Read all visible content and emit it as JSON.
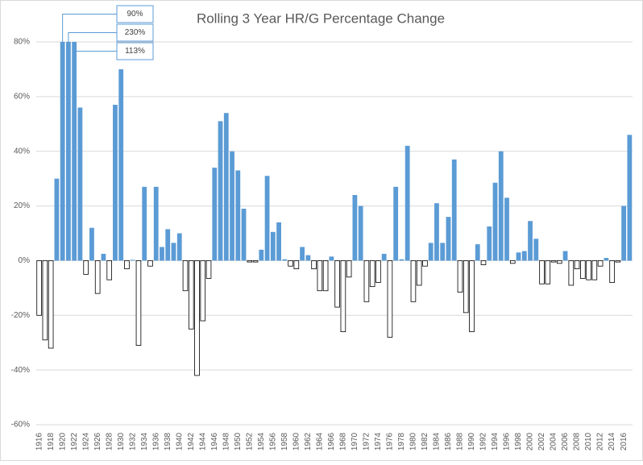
{
  "chart_data": {
    "type": "bar",
    "title": "Rolling 3 Year HR/G Percentage Change",
    "categories": [
      "1916",
      null,
      "1918",
      null,
      "1920",
      null,
      "1922",
      null,
      "1924",
      null,
      "1926",
      null,
      "1928",
      null,
      "1930",
      null,
      "1932",
      null,
      "1934",
      null,
      "1936",
      null,
      "1938",
      null,
      "1940",
      null,
      "1942",
      null,
      "1944",
      null,
      "1946",
      null,
      "1948",
      null,
      "1950",
      null,
      "1952",
      null,
      "1954",
      null,
      "1956",
      null,
      "1958",
      null,
      "1960",
      null,
      "1962",
      null,
      "1964",
      null,
      "1966",
      null,
      "1968",
      null,
      "1970",
      null,
      "1972",
      null,
      "1974",
      null,
      "1976",
      null,
      "1978",
      null,
      "1980",
      null,
      "1982",
      null,
      "1984",
      null,
      "1986",
      null,
      "1988",
      null,
      "1990",
      null,
      "1992",
      null,
      "1994",
      null,
      "1996",
      null,
      "1998",
      null,
      "2000",
      null,
      "2002",
      null,
      "2004",
      null,
      "2006",
      null,
      "2008",
      null,
      "2010",
      null,
      "2012",
      null,
      "2014",
      null,
      "2016",
      null
    ],
    "values": [
      -20,
      -29,
      -32,
      30,
      90,
      230,
      113,
      56,
      -5,
      12,
      -12,
      2.5,
      -7,
      57,
      70,
      -3,
      0.3,
      -31,
      27,
      -2,
      27,
      5,
      11.5,
      6.5,
      10,
      -11,
      -25,
      -42,
      -22,
      -6.5,
      34,
      51,
      54,
      40,
      33,
      19,
      -0.5,
      -0.5,
      4,
      31,
      10.5,
      14,
      0.5,
      -2,
      -3,
      5,
      2,
      -3,
      -11,
      -11,
      1.5,
      -17,
      -26,
      -6,
      24,
      20,
      -15,
      -9.5,
      -8,
      2.5,
      -28,
      27,
      0.5,
      42,
      -15,
      -9,
      -2,
      6.5,
      21,
      6.5,
      16,
      37,
      -11.5,
      -19,
      -26,
      6,
      -1.5,
      12.5,
      28.5,
      40,
      23,
      -1,
      3,
      3.5,
      14.5,
      8,
      -8.5,
      -8.5,
      -0.5,
      -1,
      3.5,
      -9,
      -3,
      -6.5,
      -7,
      -7,
      -2,
      1,
      -8,
      -0.5,
      20,
      46
    ],
    "value_labels": [
      null,
      null,
      null,
      null,
      "90%",
      "230%",
      "113%",
      null,
      null,
      null,
      null,
      null,
      null,
      null,
      null,
      null,
      null,
      null,
      null,
      null,
      null,
      null,
      null,
      null,
      null,
      null,
      null,
      null,
      null,
      null,
      null,
      null,
      null,
      null,
      null,
      null,
      null,
      null,
      null,
      null,
      null,
      null,
      null,
      null,
      null,
      null,
      null,
      null,
      null,
      null,
      null,
      null,
      null,
      null,
      null,
      null,
      null,
      null,
      null,
      null,
      null,
      null,
      null,
      null,
      null,
      null,
      null,
      null,
      null,
      null,
      null,
      null,
      null,
      null,
      null,
      null,
      null,
      null,
      null,
      null,
      null,
      null,
      null,
      null,
      null,
      null,
      null,
      null,
      null,
      null,
      null,
      null,
      null,
      null,
      null,
      null,
      null,
      null,
      null,
      null,
      null,
      null
    ],
    "positive_color": "#5b9bd5",
    "negative_color": "#ffffff",
    "ylim": [
      -60,
      80
    ],
    "yticks": [
      {
        "value": -60,
        "label": "-60%"
      },
      {
        "value": -40,
        "label": "-40%"
      },
      {
        "value": -20,
        "label": "-20%"
      },
      {
        "value": 0,
        "label": "0%"
      },
      {
        "value": 20,
        "label": "20%"
      },
      {
        "value": 40,
        "label": "40%"
      },
      {
        "value": 60,
        "label": "60%"
      },
      {
        "value": 80,
        "label": "80%"
      }
    ],
    "grid": true
  }
}
